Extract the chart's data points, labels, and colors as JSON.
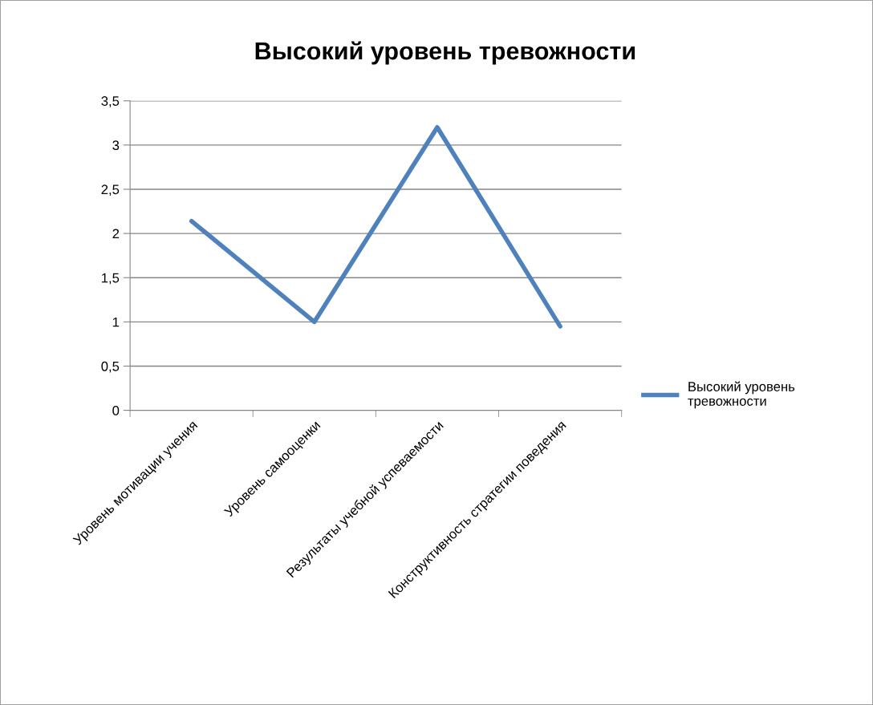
{
  "chart_data": {
    "type": "line",
    "title": "Высокий уровень тревожности",
    "categories": [
      "Уровень мотивации учения",
      "Уровень самооценки",
      "Результаты учебной успеваемости",
      "Конструктивность стратегии поведения"
    ],
    "series": [
      {
        "name": "Высокий уровень тревожности",
        "color": "#4f81bd",
        "values": [
          2.14,
          1.0,
          3.2,
          0.95
        ]
      }
    ],
    "ylim": [
      0,
      3.5
    ],
    "yticks": [
      {
        "value": 0,
        "label": "0"
      },
      {
        "value": 0.5,
        "label": "0,5"
      },
      {
        "value": 1,
        "label": "1"
      },
      {
        "value": 1.5,
        "label": "1,5"
      },
      {
        "value": 2,
        "label": "2"
      },
      {
        "value": 2.5,
        "label": "2,5"
      },
      {
        "value": 3,
        "label": "3"
      },
      {
        "value": 3.5,
        "label": "3,5"
      }
    ],
    "grid": "y",
    "legend": "right",
    "marker": "none",
    "line_style": "solid"
  }
}
